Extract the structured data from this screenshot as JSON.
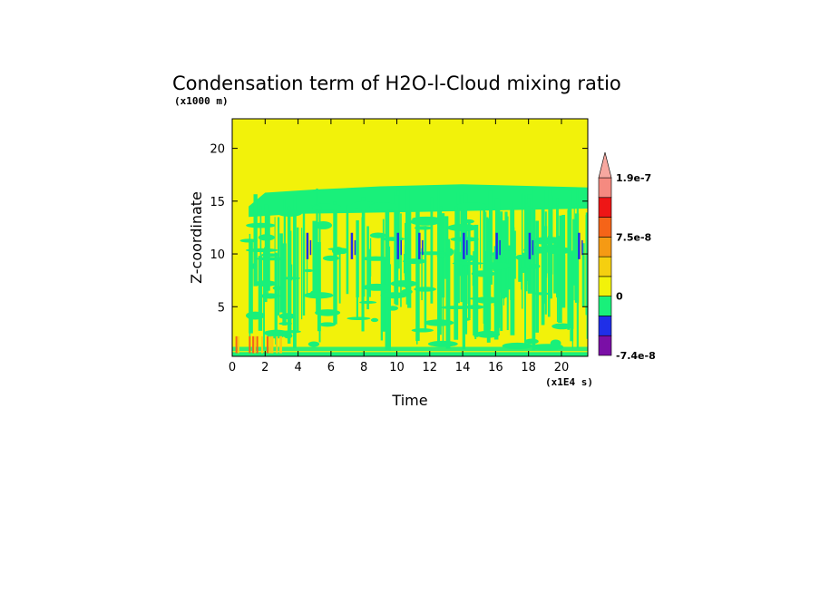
{
  "chart_data": {
    "type": "heatmap",
    "title": "Condensation term of H2O-l-Cloud mixing ratio",
    "xlabel": "Time",
    "ylabel": "Z-coordinate",
    "x_unit": "(x1E4 s)",
    "y_unit": "(x1000 m)",
    "xlim": [
      0,
      21.6
    ],
    "ylim": [
      0.3,
      22.8
    ],
    "x_ticks": [
      0,
      2,
      4,
      6,
      8,
      10,
      12,
      14,
      16,
      18,
      20
    ],
    "y_ticks": [
      5,
      10,
      15,
      20
    ],
    "colorbar": {
      "colors": [
        "#7a0fa6",
        "#1f2fe8",
        "#19f07a",
        "#f2f20a",
        "#f5cf10",
        "#f59a14",
        "#f56418",
        "#ee1616",
        "#f58a80",
        "#f7a8a0"
      ],
      "labels": [
        {
          "value": "-7.4e-8",
          "level": 0
        },
        {
          "value": "0",
          "level": 3
        },
        {
          "value": "7.5e-8",
          "level": 6
        },
        {
          "value": "1.9e-7",
          "level": 9
        }
      ],
      "extend_top": true
    },
    "regions": {
      "background": "positive-small (yellow, ~0 to 2.5e-8)",
      "cloud_layer_top": 16.5,
      "cloud_layer_bottom": 0.5,
      "cloud_onset_time": 1.0,
      "negative_patches_times": [
        4.5,
        7.2,
        10.0,
        11.3,
        14.0,
        16.0,
        18.0,
        21.0
      ],
      "negative_patches_height": 10.5
    }
  }
}
